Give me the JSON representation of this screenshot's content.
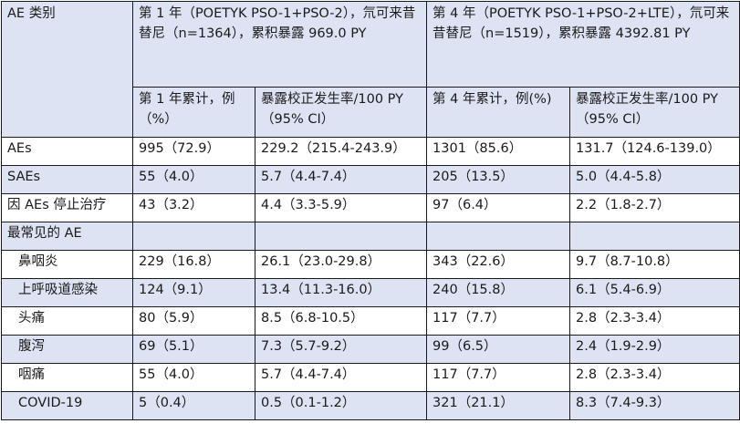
{
  "header": {
    "corner": "AE 类别",
    "group1": "第 1 年（POETYK PSO-1+PSO-2），氘可来昔替尼（n=1364），累积暴露 969.0 PY",
    "group2": "第 4 年（POETYK PSO-1+PSO-2+LTE），氘可来昔替尼（n=1519），累积暴露 4392.81 PY",
    "sub": [
      "第 1 年累计，例（%）",
      "暴露校正发生率/100 PY（95% CI）",
      "第 4 年累计，例(%)",
      "暴露校正发生率/100 PY（95% CI）"
    ]
  },
  "rows": [
    {
      "label": "AEs",
      "cells": [
        "995（72.9）",
        "229.2（215.4-243.9）",
        "1301（85.6）",
        "131.7（124.6-139.0）"
      ]
    },
    {
      "label": "SAEs",
      "cells": [
        "55（4.0）",
        "5.7（4.4-7.4）",
        "205（13.5）",
        "5.0（4.4-5.8）"
      ]
    },
    {
      "label": "因 AEs 停止治疗",
      "cells": [
        "43（3.2）",
        "4.4（3.3-5.9）",
        "97（6.4）",
        "2.2（1.8-2.7）"
      ]
    }
  ],
  "common_section": "最常见的 AE",
  "common_rows": [
    {
      "label": "鼻咽炎",
      "cells": [
        "229（16.8）",
        "26.1（23.0-29.8）",
        "343（22.6）",
        "9.7（8.7-10.8）"
      ]
    },
    {
      "label": "上呼吸道感染",
      "cells": [
        "124（9.1）",
        "13.4（11.3-16.0）",
        "240（15.8）",
        "6.1（5.4-6.9）"
      ]
    },
    {
      "label": "头痛",
      "cells": [
        "80（5.9）",
        "8.5（6.8-10.5）",
        "117（7.7）",
        "2.8（2.3-3.4）"
      ]
    },
    {
      "label": "腹泻",
      "cells": [
        "69（5.1）",
        "7.3（5.7-9.2）",
        "99（6.5）",
        "2.4（1.9-2.9）"
      ]
    },
    {
      "label": "咽痛",
      "cells": [
        "55（4.0）",
        "5.7（4.4-7.4）",
        "117（7.7）",
        "2.8（2.3-3.4）"
      ]
    },
    {
      "label": "COVID-19",
      "cells": [
        "5（0.4）",
        "0.5（0.1-1.2）",
        "321（21.1）",
        "8.3（7.4-9.3）"
      ]
    }
  ],
  "colors": {
    "header_shade": "#dde3f3",
    "border": "#1a1a1a"
  }
}
